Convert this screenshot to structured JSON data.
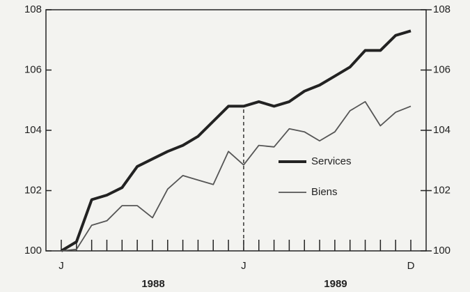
{
  "chart_data": {
    "type": "line",
    "categories": [
      "J",
      null,
      null,
      null,
      null,
      null,
      null,
      null,
      null,
      null,
      null,
      null,
      "J",
      null,
      null,
      null,
      null,
      null,
      null,
      null,
      null,
      null,
      null,
      "D"
    ],
    "year_labels": [
      "1988",
      "1989"
    ],
    "series": [
      {
        "name": "Services",
        "color": "#222222",
        "values": [
          100.0,
          100.3,
          101.7,
          101.85,
          102.1,
          102.8,
          103.05,
          103.3,
          103.5,
          103.8,
          104.3,
          104.8,
          104.8,
          104.95,
          104.8,
          104.95,
          105.3,
          105.5,
          105.8,
          106.1,
          106.65,
          106.65,
          107.15,
          107.3
        ]
      },
      {
        "name": "Biens",
        "color": "#555555",
        "values": [
          100.0,
          100.05,
          100.85,
          101.0,
          101.5,
          101.5,
          101.1,
          102.05,
          102.5,
          102.35,
          102.2,
          103.3,
          102.85,
          103.5,
          103.45,
          104.05,
          103.95,
          103.65,
          103.95,
          104.65,
          104.95,
          104.15,
          104.6,
          104.8
        ]
      }
    ],
    "ylim": [
      100,
      108
    ],
    "yticks": [
      100,
      102,
      104,
      106,
      108
    ],
    "y2lim": [
      100,
      108
    ],
    "y2ticks": [
      100,
      102,
      104,
      106,
      108
    ]
  }
}
